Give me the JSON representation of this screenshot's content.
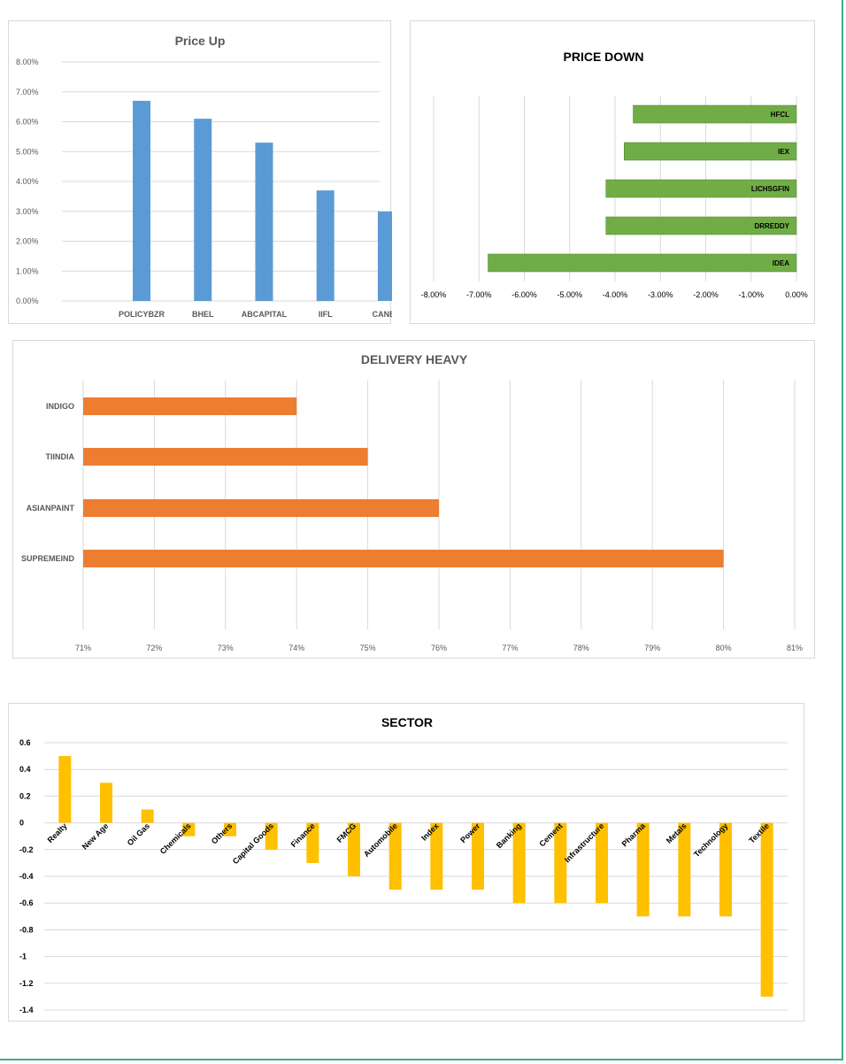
{
  "chart_data": [
    {
      "id": "price_up",
      "type": "bar",
      "title": "Price Up",
      "categories": [
        "POLICYBZR",
        "BHEL",
        "ABCAPITAL",
        "IIFL",
        "CANBK"
      ],
      "values": [
        6.7,
        6.1,
        5.3,
        3.7,
        3.0
      ],
      "ylim": [
        0,
        8
      ],
      "yticks": [
        "0.00%",
        "1.00%",
        "2.00%",
        "3.00%",
        "4.00%",
        "5.00%",
        "6.00%",
        "7.00%",
        "8.00%"
      ],
      "unit": "%",
      "grid": true,
      "color": "#5b9bd5"
    },
    {
      "id": "price_down",
      "type": "bar",
      "orientation": "horizontal",
      "title": "PRICE DOWN",
      "categories": [
        "HFCL",
        "IEX",
        "LICHSGFIN",
        "DRREDDY",
        "IDEA"
      ],
      "values": [
        -3.6,
        -3.8,
        -4.2,
        -4.2,
        -6.8
      ],
      "xlim": [
        -8,
        0
      ],
      "xticks": [
        "-8.00%",
        "-7.00%",
        "-6.00%",
        "-5.00%",
        "-4.00%",
        "-3.00%",
        "-2.00%",
        "-1.00%",
        "0.00%"
      ],
      "unit": "%",
      "grid": true,
      "color": "#70ad47"
    },
    {
      "id": "delivery_heavy",
      "type": "bar",
      "orientation": "horizontal",
      "title": "DELIVERY HEAVY",
      "categories": [
        "INDIGO",
        "TIINDIA",
        "ASIANPAINT",
        "SUPREMEIND"
      ],
      "values": [
        74,
        75,
        76,
        80
      ],
      "xlim": [
        71,
        81
      ],
      "xticks": [
        "71%",
        "72%",
        "73%",
        "74%",
        "75%",
        "76%",
        "77%",
        "78%",
        "79%",
        "80%",
        "81%"
      ],
      "unit": "%",
      "grid": true,
      "color": "#ed7d31"
    },
    {
      "id": "sector",
      "type": "bar",
      "title": "SECTOR",
      "categories": [
        "Realty",
        "New Age",
        "Oil Gas",
        "Chemicals",
        "Others",
        "Capital Goods",
        "Finance",
        "FMCG",
        "Automobile",
        "Index",
        "Power",
        "Banking",
        "Cement",
        "Infrastructure",
        "Pharma",
        "Metals",
        "Technology",
        "Textile"
      ],
      "values": [
        0.5,
        0.3,
        0.1,
        -0.1,
        -0.1,
        -0.2,
        -0.3,
        -0.4,
        -0.5,
        -0.5,
        -0.5,
        -0.6,
        -0.6,
        -0.6,
        -0.7,
        -0.7,
        -0.7,
        -1.3
      ],
      "ylim": [
        -1.4,
        0.6
      ],
      "yticks": [
        "0.6",
        "0.4",
        "0.2",
        "0",
        "-0.2",
        "-0.4",
        "-0.6",
        "-0.8",
        "-1",
        "-1.2",
        "-1.4"
      ],
      "grid": true,
      "color": "#ffc000"
    }
  ]
}
